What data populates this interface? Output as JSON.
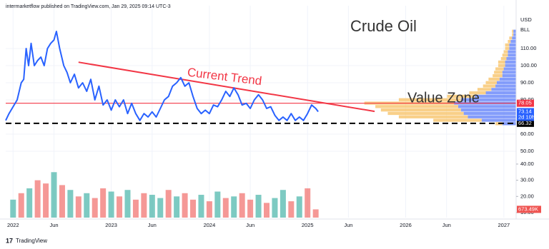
{
  "chart_data": {
    "type": "line",
    "header": "intermarketflow published on TradingView.com, Jan 29, 2025 09:14 UTC-3",
    "title": "Crude Oil",
    "annotations": {
      "trend": "Current Trend",
      "zone": "Value Zone"
    },
    "footer": "TradingView",
    "logo": "17",
    "axis_units": [
      "USD",
      "BLL"
    ],
    "xlim": [
      -0.9,
      61.5
    ],
    "xticks": [
      {
        "value": 0,
        "label": "2022"
      },
      {
        "value": 5,
        "label": "Jun"
      },
      {
        "value": 12,
        "label": "2023"
      },
      {
        "value": 17,
        "label": "Jun"
      },
      {
        "value": 24,
        "label": "2024"
      },
      {
        "value": 29,
        "label": "Jun"
      },
      {
        "value": 36,
        "label": "2025"
      },
      {
        "value": 41,
        "label": "Jun"
      },
      {
        "value": 48,
        "label": "2026"
      },
      {
        "value": 53,
        "label": "Jun"
      },
      {
        "value": 60,
        "label": "2027"
      }
    ],
    "ylim": [
      11.25,
      135
    ],
    "yticks": [
      {
        "value": 50,
        "label": "50.00"
      },
      {
        "value": 60,
        "label": "60.00"
      },
      {
        "value": 80,
        "label": "80.00"
      },
      {
        "value": 90,
        "label": "90.00"
      },
      {
        "value": 100,
        "label": "100.00"
      },
      {
        "value": 110,
        "label": "110.00"
      }
    ],
    "y2lim": [
      6.9,
      137.9
    ],
    "y2ticks": [
      {
        "value": 10,
        "label": "10.00"
      },
      {
        "value": 20,
        "label": "20.00"
      },
      {
        "value": 30,
        "label": "30.00"
      },
      {
        "value": 40,
        "label": "40.00"
      }
    ],
    "series": [
      {
        "name": "Crude Oil",
        "color": "#2962ff",
        "x": [
          -0.9,
          -0.5,
          0,
          0.5,
          1,
          1.3,
          1.6,
          1.9,
          2.2,
          2.6,
          3,
          3.4,
          3.8,
          4.2,
          4.6,
          5,
          5.3,
          5.7,
          6.2,
          6.6,
          7,
          7.5,
          8,
          8.5,
          9,
          9.5,
          10,
          10.5,
          11,
          11.5,
          12,
          12.5,
          13,
          13.5,
          14,
          14.5,
          15,
          15.5,
          16,
          16.5,
          17,
          17.5,
          18,
          18.5,
          19,
          19.5,
          20,
          20.5,
          21,
          21.5,
          22,
          22.5,
          23,
          23.5,
          24,
          24.5,
          25,
          25.5,
          26,
          26.5,
          27,
          27.5,
          28,
          28.5,
          29,
          29.5,
          30,
          30.5,
          31,
          31.5,
          32,
          32.5,
          33,
          33.5,
          34,
          34.5,
          35,
          35.5,
          36,
          36.5,
          37,
          37.3
        ],
        "values": [
          68,
          72,
          76,
          80,
          90,
          92,
          110,
          100,
          113,
          100,
          103,
          105,
          100,
          110,
          113,
          115,
          120,
          110,
          100,
          96,
          90,
          95,
          87,
          90,
          85,
          92,
          80,
          88,
          77,
          80,
          74,
          80,
          76,
          80,
          72,
          78,
          72,
          68,
          72,
          70,
          73,
          70,
          75,
          80,
          82,
          88,
          90,
          93,
          88,
          90,
          82,
          75,
          72,
          74,
          72,
          77,
          76,
          80,
          85,
          82,
          87,
          83,
          77,
          78,
          75,
          80,
          83,
          80,
          75,
          76,
          71,
          68,
          70,
          68,
          72,
          68,
          70,
          68,
          72,
          77,
          75,
          73.14
        ]
      }
    ],
    "volume": {
      "color_up": "#26a69a",
      "color_down": "#ef5350",
      "x": [
        0,
        1,
        2,
        3,
        4,
        5,
        6,
        7,
        8,
        9,
        10,
        11,
        12,
        13,
        14,
        15,
        16,
        17,
        18,
        19,
        20,
        21,
        22,
        23,
        24,
        25,
        26,
        27,
        28,
        29,
        30,
        31,
        32,
        33,
        34,
        35,
        36,
        37
      ],
      "values": [
        18,
        22,
        25,
        30,
        28,
        35,
        27,
        24,
        20,
        22,
        19,
        25,
        23,
        20,
        24,
        18,
        22,
        21,
        19,
        24,
        20,
        22,
        18,
        21,
        17,
        23,
        19,
        20,
        22,
        18,
        21,
        16,
        19,
        24,
        17,
        20,
        25,
        12
      ],
      "up": [
        true,
        false,
        true,
        false,
        false,
        true,
        false,
        true,
        false,
        true,
        false,
        false,
        true,
        false,
        true,
        false,
        false,
        true,
        true,
        false,
        true,
        false,
        false,
        true,
        false,
        true,
        false,
        true,
        false,
        false,
        true,
        false,
        true,
        true,
        false,
        true,
        false,
        false
      ],
      "last_label": "673.49K"
    },
    "trendline": {
      "color": "#f23645",
      "x": [
        8,
        44.2
      ],
      "values": [
        102,
        73.3
      ]
    },
    "hlines": [
      {
        "value": 78.05,
        "color": "#f23645",
        "style": "solid"
      },
      {
        "value": 66.32,
        "color": "#000000",
        "style": "dashed"
      }
    ],
    "last_price": {
      "value": 73.14,
      "countdown": "2d 10h",
      "color": "#2962ff"
    },
    "profile": {
      "xlim": [
        0,
        115
      ],
      "color_up": "#5b7cfa",
      "color_down": "#f7c46c",
      "levels": [
        66,
        68,
        70,
        72,
        74,
        76,
        78,
        80,
        82,
        84,
        86,
        88,
        90,
        92,
        94,
        96,
        98,
        100,
        102,
        104,
        106,
        108,
        110,
        112,
        114,
        116,
        118,
        120
      ],
      "up": [
        10,
        25,
        35,
        38,
        40,
        42,
        45,
        40,
        30,
        22,
        18,
        15,
        14,
        12,
        10,
        10,
        9,
        8,
        8,
        7,
        6,
        6,
        5,
        5,
        4,
        3,
        2,
        2
      ],
      "down": [
        5,
        35,
        50,
        55,
        58,
        60,
        65,
        45,
        20,
        12,
        10,
        9,
        8,
        8,
        7,
        6,
        6,
        5,
        5,
        4,
        4,
        3,
        3,
        3,
        2,
        2,
        1,
        1
      ]
    }
  }
}
